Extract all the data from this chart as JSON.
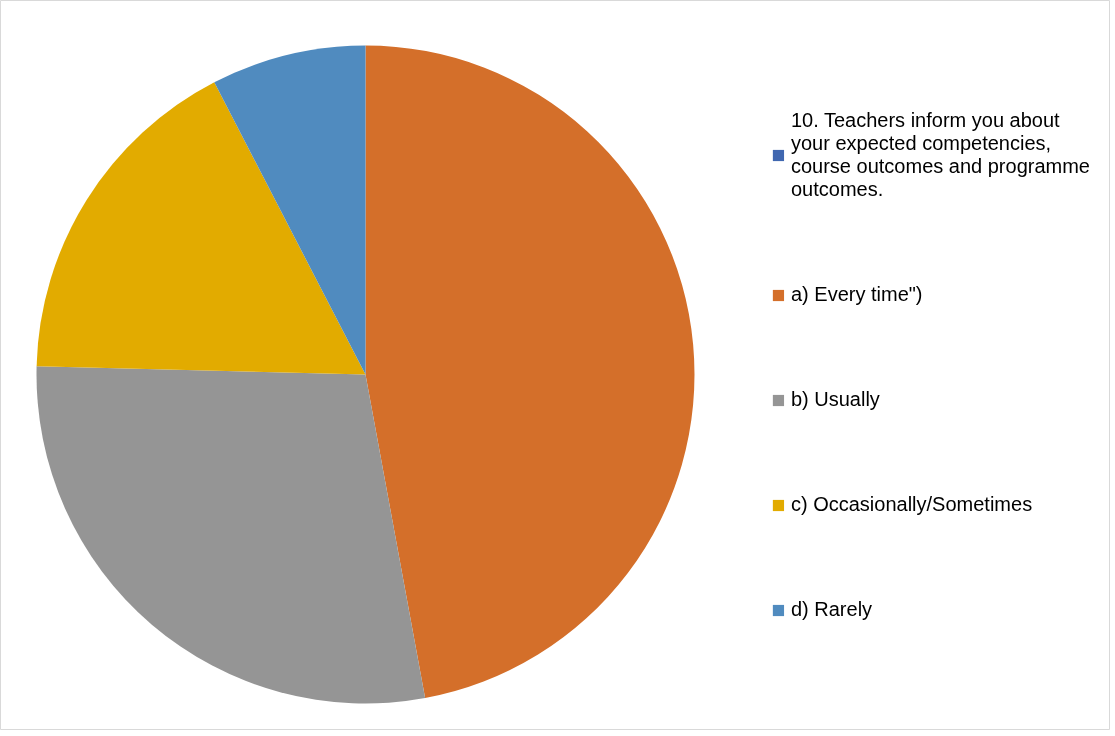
{
  "chart_data": {
    "type": "pie",
    "categories": [
      "10. Teachers inform you about your expected competencies, course outcomes and programme outcomes.",
      "a) Every time\")",
      "b) Usually",
      "c) Occasionally/Sometimes",
      "d) Rarely"
    ],
    "values": [
      0,
      47.1,
      28.3,
      17.0,
      7.6
    ],
    "colors": [
      "#4067b0",
      "#d46f2a",
      "#959595",
      "#e2ab00",
      "#508bbf"
    ],
    "legend": "right"
  }
}
